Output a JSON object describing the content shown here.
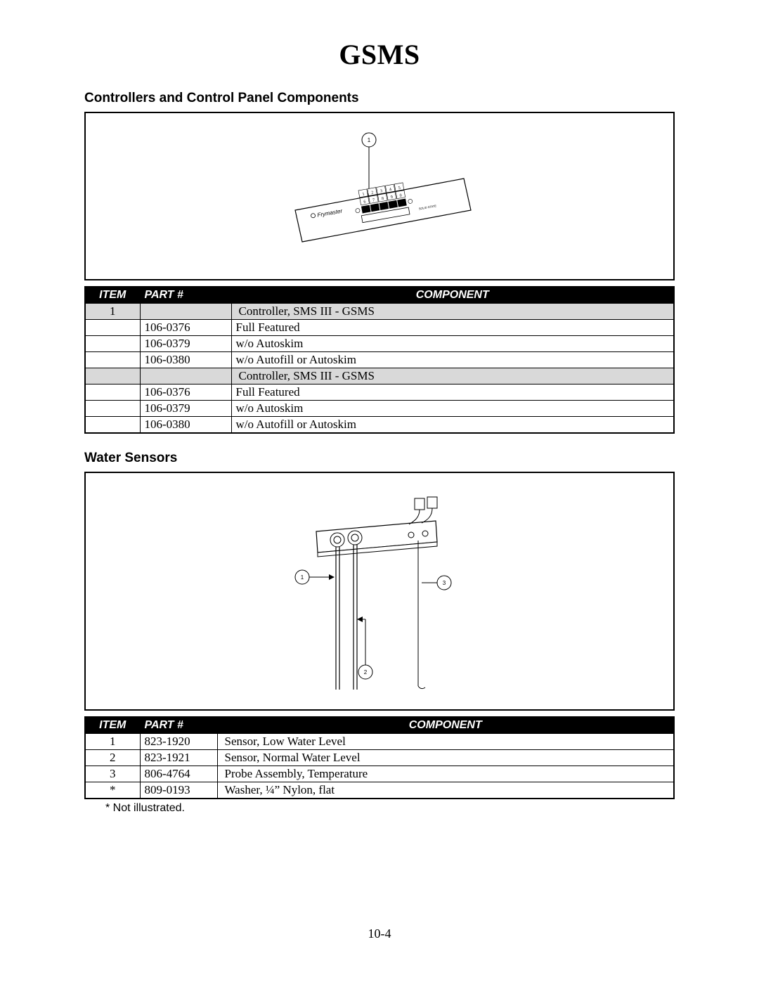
{
  "page_title": "GSMS",
  "page_number": "10-4",
  "section1": {
    "heading": "Controllers and Control Panel Components",
    "callouts": [
      "1"
    ],
    "panel_brand": "Frymaster",
    "panel_label": "SOLID STATE",
    "table": {
      "headers": {
        "item": "ITEM",
        "part": "PART #",
        "component": "COMPONENT"
      },
      "rows": [
        {
          "grey": true,
          "item": "1",
          "part": "",
          "component": "Controller, SMS III - GSMS",
          "head": true
        },
        {
          "grey": false,
          "item": "",
          "part": "106-0376",
          "component": "Full Featured"
        },
        {
          "grey": false,
          "item": "",
          "part": "106-0379",
          "component": "w/o Autoskim"
        },
        {
          "grey": false,
          "item": "",
          "part": "106-0380",
          "component": "w/o Autofill or Autoskim"
        },
        {
          "grey": true,
          "item": "",
          "part": "",
          "component": "Controller, SMS III - GSMS",
          "head": true
        },
        {
          "grey": false,
          "item": "",
          "part": "106-0376",
          "component": "Full Featured"
        },
        {
          "grey": false,
          "item": "",
          "part": "106-0379",
          "component": "w/o Autoskim"
        },
        {
          "grey": false,
          "item": "",
          "part": "106-0380",
          "component": "w/o Autofill or Autoskim"
        }
      ]
    }
  },
  "section2": {
    "heading": "Water Sensors",
    "callouts": [
      "1",
      "2",
      "3"
    ],
    "table": {
      "headers": {
        "item": "ITEM",
        "part": "PART #",
        "component": "COMPONENT"
      },
      "rows": [
        {
          "item": "1",
          "part": "823-1920",
          "component": "Sensor, Low Water Level"
        },
        {
          "item": "2",
          "part": "823-1921",
          "component": "Sensor, Normal Water Level"
        },
        {
          "item": "3",
          "part": "806-4764",
          "component": "Probe Assembly, Temperature"
        },
        {
          "item": "*",
          "part": "809-0193",
          "component": "Washer, ¼” Nylon, flat"
        }
      ]
    },
    "footnote": "* Not illustrated."
  }
}
